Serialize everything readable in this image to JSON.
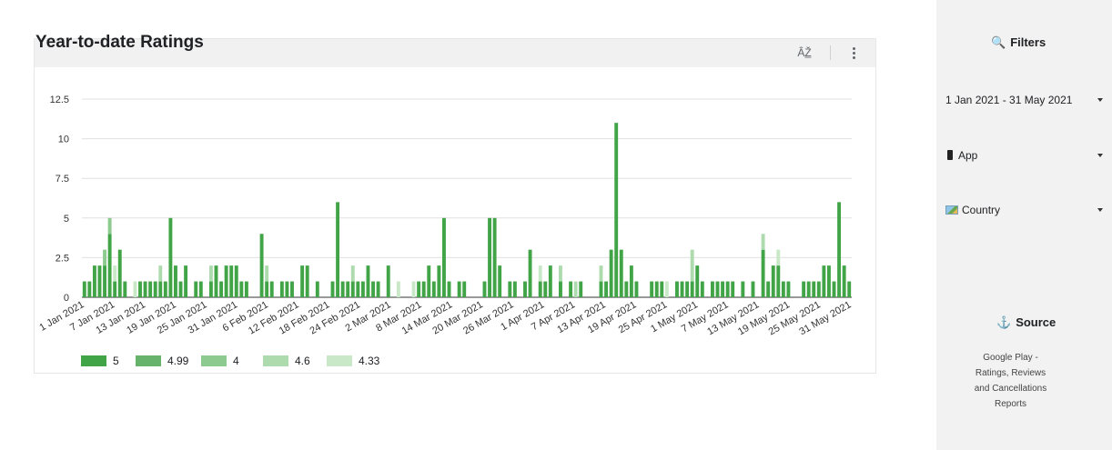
{
  "chart": {
    "title": "Year-to-date Ratings",
    "sort_icon": "ÂŽ̲",
    "menu_icon": "more-vert-icon"
  },
  "colors": {
    "c5": "#41a446",
    "c499": "#67b36b",
    "c4": "#8dca8f",
    "c46": "#aedbae",
    "c433": "#c8e8c8",
    "grid": "#e0e0e0",
    "axis": "#555555"
  },
  "sidebar": {
    "filters_title": "Filters",
    "filters_icon": "magnifier-icon",
    "date_range": "1 Jan 2021 - 31 May 2021",
    "app_label": "App",
    "country_label": "Country",
    "source_title": "Source",
    "source_icon": "anchor-icon",
    "source_desc_lines": [
      "Google Play -",
      "Ratings, Reviews",
      "and Cancellations",
      "Reports"
    ]
  },
  "chart_data": {
    "type": "bar",
    "stacked": true,
    "title": "Year-to-date Ratings",
    "ylim": [
      0,
      12.5
    ],
    "yticks": [
      "0",
      "2.5",
      "5",
      "7.5",
      "10",
      "12.5"
    ],
    "xtick_labels": [
      "1 Jan 2021",
      "7 Jan 2021",
      "13 Jan 2021",
      "19 Jan 2021",
      "25 Jan 2021",
      "31 Jan 2021",
      "6 Feb 2021",
      "12 Feb 2021",
      "18 Feb 2021",
      "24 Feb 2021",
      "2 Mar 2021",
      "8 Mar 2021",
      "14 Mar 2021",
      "20 Mar 2021",
      "26 Mar 2021",
      "1 Apr 2021",
      "7 Apr 2021",
      "13 Apr 2021",
      "19 Apr 2021",
      "25 Apr 2021",
      "1 May 2021",
      "7 May 2021",
      "13 May 2021",
      "19 May 2021",
      "25 May 2021",
      "31 May 2021"
    ],
    "legend_position": "bottom-left",
    "series": [
      {
        "name": "5",
        "values": [
          1,
          1,
          2,
          2,
          2,
          4,
          1,
          3,
          1,
          0,
          0,
          1,
          1,
          1,
          1,
          1,
          1,
          5,
          2,
          1,
          2,
          0,
          1,
          1,
          0,
          1,
          2,
          1,
          2,
          2,
          2,
          1,
          1,
          0,
          0,
          4,
          1,
          1,
          0,
          1,
          1,
          1,
          0,
          2,
          2,
          0,
          1,
          0,
          0,
          1,
          6,
          1,
          1,
          1,
          1,
          1,
          2,
          1,
          1,
          0,
          2,
          0,
          0,
          0,
          0,
          0,
          1,
          1,
          2,
          1,
          2,
          5,
          1,
          0,
          1,
          1,
          0,
          0,
          0,
          1,
          5,
          5,
          2,
          0,
          1,
          1,
          0,
          1,
          3,
          0,
          1,
          1,
          2,
          0,
          1,
          0,
          1,
          0,
          1,
          0,
          0,
          0,
          1,
          1,
          3,
          11,
          3,
          1,
          2,
          1,
          0,
          0,
          1,
          1,
          1,
          0,
          0,
          1,
          1,
          1,
          1,
          2,
          1,
          0,
          1,
          1,
          1,
          1,
          1,
          0,
          1,
          0,
          1,
          0,
          3,
          1,
          2,
          2,
          1,
          1,
          0,
          0,
          1,
          1,
          1,
          1,
          2,
          2,
          1,
          6,
          2,
          1
        ]
      },
      {
        "name": "4.99",
        "values": [
          0,
          0,
          0,
          0,
          0,
          0,
          0,
          0,
          0,
          0,
          0,
          0,
          0,
          0,
          0,
          0,
          0,
          0,
          0,
          0,
          0,
          0,
          0,
          0,
          0,
          0,
          0,
          0,
          0,
          0,
          0,
          0,
          0,
          0,
          0,
          0,
          0,
          0,
          0,
          0,
          0,
          0,
          0,
          0,
          0,
          0,
          0,
          0,
          0,
          0,
          0,
          0,
          0,
          0,
          0,
          0,
          0,
          0,
          0,
          0,
          0,
          0,
          0,
          0,
          0,
          0,
          0,
          0,
          0,
          0,
          0,
          0,
          0,
          0,
          0,
          0,
          0,
          0,
          0,
          0,
          0,
          0,
          0,
          0,
          0,
          0,
          0,
          0,
          0,
          0,
          0,
          0,
          0,
          0,
          0,
          0,
          0,
          0,
          0,
          0,
          0,
          0,
          0,
          0,
          0,
          0,
          0,
          0,
          0,
          0,
          0,
          0,
          0,
          0,
          0,
          0,
          0,
          0,
          0,
          0,
          0,
          0,
          0,
          0,
          0,
          0,
          0,
          0,
          0,
          0,
          0,
          0,
          0,
          0,
          0,
          0,
          0,
          0,
          0,
          0,
          0,
          0,
          0,
          0,
          0,
          0,
          0,
          0,
          0,
          0,
          0,
          0
        ]
      },
      {
        "name": "4",
        "values": [
          0,
          0,
          0,
          0,
          1,
          1,
          0,
          0,
          0,
          0,
          0,
          0,
          0,
          0,
          0,
          0,
          0,
          0,
          0,
          0,
          0,
          0,
          0,
          0,
          0,
          0,
          0,
          0,
          0,
          0,
          0,
          0,
          0,
          0,
          0,
          0,
          0,
          0,
          0,
          0,
          0,
          0,
          0,
          0,
          0,
          0,
          0,
          0,
          0,
          0,
          0,
          0,
          0,
          0,
          0,
          0,
          0,
          0,
          0,
          0,
          0,
          0,
          0,
          0,
          0,
          0,
          0,
          0,
          0,
          0,
          0,
          0,
          0,
          0,
          0,
          0,
          0,
          0,
          0,
          0,
          0,
          0,
          0,
          0,
          0,
          0,
          0,
          0,
          0,
          0,
          0,
          0,
          0,
          0,
          0,
          0,
          0,
          0,
          0,
          0,
          0,
          0,
          0,
          0,
          0,
          0,
          0,
          0,
          0,
          0,
          0,
          0,
          0,
          0,
          0,
          0,
          0,
          0,
          0,
          0,
          0,
          0,
          0,
          0,
          0,
          0,
          0,
          0,
          0,
          0,
          0,
          0,
          0,
          0,
          0,
          0,
          0,
          0,
          0,
          0,
          0,
          0,
          0,
          0,
          0,
          0,
          0,
          0,
          0,
          0,
          0,
          0
        ]
      },
      {
        "name": "4.6",
        "values": [
          0,
          0,
          0,
          0,
          0,
          0,
          0,
          0,
          0,
          0,
          0,
          0,
          0,
          0,
          0,
          1,
          0,
          0,
          0,
          0,
          0,
          0,
          0,
          0,
          0,
          1,
          0,
          0,
          0,
          0,
          0,
          0,
          0,
          0,
          0,
          0,
          1,
          0,
          0,
          0,
          0,
          0,
          0,
          0,
          0,
          0,
          0,
          0,
          0,
          0,
          0,
          0,
          0,
          1,
          0,
          0,
          0,
          0,
          0,
          0,
          0,
          0,
          0,
          0,
          0,
          0,
          0,
          0,
          0,
          0,
          0,
          0,
          0,
          0,
          0,
          0,
          0,
          0,
          0,
          0,
          0,
          0,
          0,
          0,
          0,
          0,
          0,
          0,
          0,
          0,
          0,
          0,
          0,
          0,
          1,
          0,
          0,
          1,
          0,
          0,
          0,
          0,
          1,
          0,
          0,
          0,
          0,
          0,
          0,
          0,
          0,
          0,
          0,
          0,
          0,
          0,
          0,
          0,
          0,
          0,
          2,
          0,
          0,
          0,
          0,
          0,
          0,
          0,
          0,
          0,
          0,
          0,
          0,
          0,
          1,
          0,
          0,
          0,
          0,
          0,
          0,
          0,
          0,
          0,
          0,
          0,
          0,
          0,
          0,
          0,
          0,
          0
        ]
      },
      {
        "name": "4.33",
        "values": [
          0,
          0,
          0,
          0,
          0,
          0,
          1,
          0,
          0,
          0,
          1,
          0,
          0,
          0,
          0,
          0,
          0,
          0,
          0,
          0,
          0,
          0,
          0,
          0,
          0,
          0,
          0,
          0,
          0,
          0,
          0,
          0,
          0,
          0,
          0,
          0,
          0,
          0,
          0,
          0,
          0,
          0,
          0,
          0,
          0,
          0,
          0,
          0,
          0,
          0,
          0,
          0,
          0,
          0,
          0,
          0,
          0,
          0,
          0,
          0,
          0,
          0,
          1,
          0,
          0,
          1,
          0,
          0,
          0,
          0,
          0,
          0,
          0,
          0,
          0,
          0,
          0,
          0,
          0,
          0,
          0,
          0,
          0,
          0,
          0,
          0,
          0,
          0,
          0,
          0,
          1,
          0,
          0,
          0,
          0,
          0,
          0,
          0,
          0,
          0,
          0,
          0,
          0,
          0,
          0,
          0,
          0,
          0,
          0,
          0,
          0,
          0,
          0,
          0,
          0,
          1,
          0,
          0,
          0,
          0,
          0,
          0,
          0,
          0,
          0,
          0,
          0,
          0,
          0,
          0,
          0,
          0,
          0,
          0,
          0,
          0,
          0,
          1,
          0,
          0,
          0,
          0,
          0,
          0,
          0,
          0,
          0,
          0,
          0,
          0,
          0,
          0
        ]
      }
    ]
  }
}
